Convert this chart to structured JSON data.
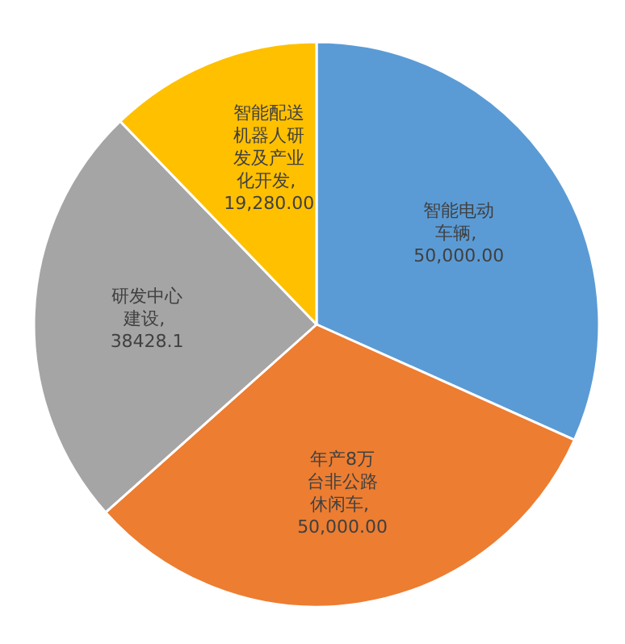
{
  "chart_data": {
    "type": "pie",
    "categories": [
      "智能电动车辆",
      "年产8万台非公路休闲车",
      "研发中心建设",
      "智能配送机器人研发及产业化开发"
    ],
    "values": [
      50000,
      50000,
      38428.1,
      19280
    ],
    "value_labels": [
      ", 50,000.00",
      ", 50,000.00",
      ", 38428.1",
      ", 19,280.00"
    ],
    "colors": [
      "#5b9bd5",
      "#ed7d31",
      "#a5a5a5",
      "#ffc000"
    ]
  }
}
